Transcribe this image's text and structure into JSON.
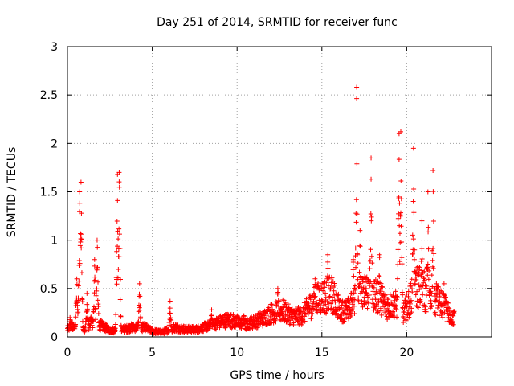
{
  "chart_data": {
    "type": "scatter",
    "title": "Day 251 of 2014, SRMTID for receiver func",
    "xlabel": "GPS time / hours",
    "ylabel": "SRMTID / TECUs",
    "xlim": [
      0,
      25
    ],
    "ylim": [
      0,
      3
    ],
    "xticks": [
      0,
      5,
      10,
      15,
      20
    ],
    "yticks": [
      0,
      0.5,
      1,
      1.5,
      2,
      2.5,
      3
    ],
    "xtick_labels": [
      "0",
      "5",
      "10",
      "15",
      "20"
    ],
    "ytick_labels": [
      "0",
      "0.5",
      "1",
      "1.5",
      "2",
      "2.5",
      "3"
    ],
    "grid": true,
    "marker": "+",
    "color": "#ff0000",
    "series": [
      {
        "name": "SRMTID",
        "baseline": [
          [
            0.0,
            0.08
          ],
          [
            0.3,
            0.12
          ],
          [
            0.6,
            0.1
          ],
          [
            1.0,
            0.08
          ],
          [
            1.4,
            0.15
          ],
          [
            2.0,
            0.12
          ],
          [
            2.5,
            0.07
          ],
          [
            3.3,
            0.08
          ],
          [
            3.8,
            0.1
          ],
          [
            4.6,
            0.1
          ],
          [
            5.0,
            0.06
          ],
          [
            5.6,
            0.05
          ],
          [
            6.3,
            0.1
          ],
          [
            7.0,
            0.08
          ],
          [
            7.6,
            0.08
          ],
          [
            8.4,
            0.12
          ],
          [
            9.0,
            0.16
          ],
          [
            9.5,
            0.18
          ],
          [
            10.0,
            0.16
          ],
          [
            10.5,
            0.13
          ],
          [
            11.0,
            0.16
          ],
          [
            11.6,
            0.2
          ],
          [
            12.0,
            0.25
          ],
          [
            12.7,
            0.28
          ],
          [
            13.2,
            0.22
          ],
          [
            13.8,
            0.22
          ],
          [
            14.4,
            0.35
          ],
          [
            14.9,
            0.42
          ],
          [
            15.6,
            0.45
          ],
          [
            16.1,
            0.28
          ],
          [
            16.5,
            0.28
          ],
          [
            17.5,
            0.5
          ],
          [
            18.0,
            0.4
          ],
          [
            18.4,
            0.45
          ],
          [
            18.8,
            0.32
          ],
          [
            19.3,
            0.35
          ],
          [
            19.8,
            0.25
          ],
          [
            20.1,
            0.35
          ],
          [
            20.6,
            0.55
          ],
          [
            21.0,
            0.5
          ],
          [
            21.4,
            0.35
          ],
          [
            21.8,
            0.38
          ],
          [
            22.2,
            0.32
          ],
          [
            22.7,
            0.2
          ]
        ],
        "peaks": [
          [
            0.15,
            0.2
          ],
          [
            0.55,
            0.6
          ],
          [
            0.72,
            1.5
          ],
          [
            0.8,
            1.6
          ],
          [
            1.15,
            0.45
          ],
          [
            1.6,
            0.8
          ],
          [
            1.75,
            1.0
          ],
          [
            2.95,
            1.68
          ],
          [
            3.05,
            1.7
          ],
          [
            4.25,
            0.55
          ],
          [
            6.05,
            0.37
          ],
          [
            8.5,
            0.28
          ],
          [
            10.4,
            0.22
          ],
          [
            12.4,
            0.5
          ],
          [
            14.6,
            0.6
          ],
          [
            15.35,
            0.85
          ],
          [
            16.85,
            0.8
          ],
          [
            17.05,
            2.58
          ],
          [
            17.25,
            1.1
          ],
          [
            17.9,
            1.85
          ],
          [
            18.4,
            0.85
          ],
          [
            19.55,
            2.1
          ],
          [
            19.65,
            2.12
          ],
          [
            20.4,
            1.95
          ],
          [
            20.9,
            1.2
          ],
          [
            21.25,
            1.5
          ],
          [
            21.55,
            1.72
          ],
          [
            21.75,
            0.55
          ],
          [
            22.2,
            0.55
          ],
          [
            22.6,
            0.22
          ]
        ]
      }
    ]
  }
}
